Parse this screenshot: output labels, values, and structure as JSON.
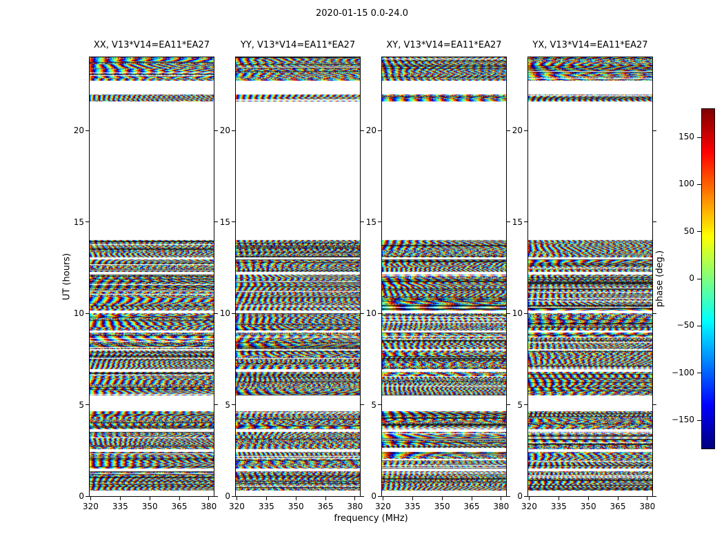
{
  "figure": {
    "title": "2020-01-15 0.0-24.0"
  },
  "chart_data": {
    "type": "heatmap",
    "title": "2020-01-15 0.0-24.0",
    "subplots": [
      {
        "correlation": "XX",
        "title": "XX, V13*V14=EA11*EA27"
      },
      {
        "correlation": "YY",
        "title": "YY, V13*V14=EA11*EA27"
      },
      {
        "correlation": "XY",
        "title": "XY, V13*V14=EA11*EA27"
      },
      {
        "correlation": "YX",
        "title": "YX, V13*V14=EA11*EA27"
      }
    ],
    "xlabel": "frequency (MHz)",
    "ylabel": "UT (hours)",
    "xlim": [
      319.5,
      382.5
    ],
    "ylim": [
      0,
      24
    ],
    "xticks": [
      320,
      335,
      350,
      365,
      380
    ],
    "yticks": [
      0,
      5,
      10,
      15,
      20
    ],
    "colorbar": {
      "label": "phase (deg.)",
      "ticks": [
        150,
        100,
        50,
        0,
        -50,
        -100,
        -150
      ],
      "vmin": -180,
      "vmax": 180,
      "colormap": "jet"
    },
    "data_segments_ut": [
      [
        0.3,
        1.35
      ],
      [
        1.5,
        2.4
      ],
      [
        2.55,
        3.5
      ],
      [
        3.65,
        4.65
      ],
      [
        5.5,
        6.8
      ],
      [
        6.95,
        7.95
      ],
      [
        8.05,
        8.95
      ],
      [
        9.05,
        10.0
      ],
      [
        10.15,
        12.1
      ],
      [
        12.25,
        12.95
      ],
      [
        13.05,
        14.0
      ],
      [
        21.6,
        21.95
      ],
      [
        22.7,
        24.0
      ]
    ],
    "values_note": "interferometric phase fringes, random phase -180..180 deg inside occupied UT segments; white = no data"
  }
}
